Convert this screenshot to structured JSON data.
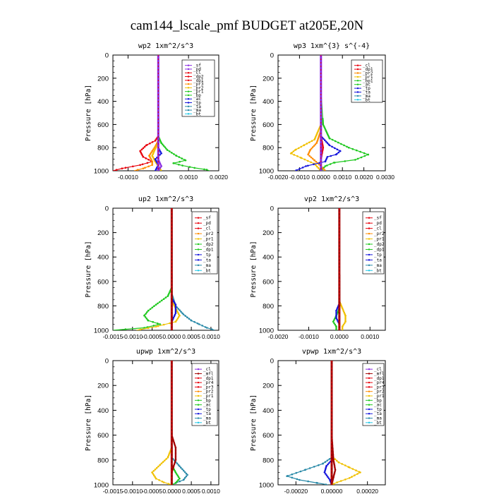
{
  "figure": {
    "title": "cam144_lscale_pmf  BUDGET at205E,20N",
    "colors": {
      "black": "#000000",
      "purple": "#8a2be2",
      "red": "#e8000b",
      "darkred": "#a00000",
      "orange": "#ff8c00",
      "gold": "#f0c000",
      "green": "#1ec81e",
      "blue": "#1414dc",
      "teal": "#2a8aa8",
      "cyan": "#20c8e8"
    }
  },
  "chart_data": [
    {
      "type": "line",
      "title": "wp2   1xm^2/s^3",
      "ylabel": "Pressure  [hPa]",
      "xlim": [
        -0.0015,
        0.002
      ],
      "ylim": [
        1000,
        0
      ],
      "xticks": [
        -0.001,
        0.0,
        0.001,
        0.002
      ],
      "xtick_labels": [
        "-0.0010",
        "0.0000",
        "0.0010",
        "0.0020"
      ],
      "yticks": [
        0,
        200,
        400,
        600,
        800,
        1000
      ],
      "legend": [
        {
          "name": "_sf",
          "color": "purple"
        },
        {
          "name": "_pd",
          "color": "purple"
        },
        {
          "name": "_cl",
          "color": "red"
        },
        {
          "name": "_dp2",
          "color": "red"
        },
        {
          "name": "_dp1",
          "color": "red"
        },
        {
          "name": "_pr3",
          "color": "orange"
        },
        {
          "name": "_pr2",
          "color": "gold"
        },
        {
          "name": "_pr1",
          "color": "green"
        },
        {
          "name": "_bp",
          "color": "green"
        },
        {
          "name": "_ac",
          "color": "blue"
        },
        {
          "name": "_tp",
          "color": "blue"
        },
        {
          "name": "_ta",
          "color": "teal"
        },
        {
          "name": "_ma",
          "color": "teal"
        },
        {
          "name": "_bt",
          "color": "cyan"
        }
      ],
      "series": [
        {
          "color": "green",
          "x": [
            0,
            0,
            0,
            0.0001,
            0.0003,
            0.0006,
            0.0009,
            0.0005,
            0.0008,
            0.0012,
            0.0016,
            0.0017
          ],
          "y": [
            0,
            600,
            700,
            760,
            820,
            870,
            910,
            935,
            955,
            975,
            990,
            1000
          ]
        },
        {
          "color": "red",
          "x": [
            0,
            0,
            -0.0001,
            -0.0004,
            -0.0006,
            -0.0005,
            -0.0002,
            -0.0006,
            -0.0012,
            -0.0015
          ],
          "y": [
            0,
            700,
            740,
            780,
            830,
            880,
            920,
            950,
            980,
            1000
          ]
        },
        {
          "color": "orange",
          "x": [
            0,
            0,
            -0.0001,
            -0.0002,
            -0.0003,
            -0.0002,
            -0.0002,
            -0.0005,
            -0.0008
          ],
          "y": [
            0,
            740,
            790,
            830,
            870,
            920,
            950,
            980,
            1000
          ]
        },
        {
          "color": "gold",
          "x": [
            0,
            0,
            -0.0001,
            -0.0002,
            -0.0001,
            0,
            0.0001
          ],
          "y": [
            0,
            760,
            810,
            870,
            920,
            960,
            1000
          ]
        },
        {
          "color": "blue",
          "x": [
            0,
            0,
            0.0001,
            -0.0001,
            0,
            -0.0001
          ],
          "y": [
            0,
            800,
            850,
            900,
            950,
            1000
          ]
        },
        {
          "color": "purple",
          "x": [
            0,
            0,
            0,
            0.0001,
            0
          ],
          "y": [
            0,
            700,
            900,
            960,
            1000
          ]
        }
      ]
    },
    {
      "type": "line",
      "title": "wp3   1xm^{3} s^{-4}",
      "ylabel": "Pressure  [hPa]",
      "xlim": [
        -0.002,
        0.003
      ],
      "ylim": [
        1000,
        0
      ],
      "xticks": [
        -0.002,
        -0.001,
        0.0,
        0.001,
        0.002,
        0.003
      ],
      "xtick_labels": [
        "-0.0020",
        "-0.0010",
        "0.0000",
        "0.0010",
        "0.0020",
        "0.0030"
      ],
      "yticks": [
        0,
        200,
        400,
        600,
        800,
        1000
      ],
      "legend": [
        {
          "name": "_cl",
          "color": "red"
        },
        {
          "name": "_dp1",
          "color": "red"
        },
        {
          "name": "_pr2",
          "color": "orange"
        },
        {
          "name": "_pr1",
          "color": "gold"
        },
        {
          "name": "_bp1",
          "color": "green"
        },
        {
          "name": "_ac",
          "color": "green"
        },
        {
          "name": "_tp",
          "color": "blue"
        },
        {
          "name": "_ta",
          "color": "blue"
        },
        {
          "name": "_ma",
          "color": "teal"
        },
        {
          "name": "_bt",
          "color": "cyan"
        }
      ],
      "series": [
        {
          "color": "green",
          "x": [
            0,
            0,
            0.0001,
            0.0004,
            0.0013,
            0.0022,
            0.0016,
            0.0006,
            0.0002,
            0
          ],
          "y": [
            0,
            300,
            600,
            720,
            800,
            860,
            905,
            930,
            960,
            1000
          ]
        },
        {
          "color": "gold",
          "x": [
            0,
            0,
            -0.0003,
            -0.0008,
            -0.0012,
            -0.0014,
            -0.0009,
            -0.0003,
            0
          ],
          "y": [
            0,
            600,
            730,
            780,
            820,
            850,
            890,
            940,
            1000
          ]
        },
        {
          "color": "orange",
          "x": [
            0,
            0,
            -0.0002,
            -0.0005,
            -0.0006,
            -0.0003,
            0,
            0.0002
          ],
          "y": [
            0,
            650,
            760,
            820,
            860,
            910,
            960,
            1000
          ]
        },
        {
          "color": "blue",
          "x": [
            0,
            0,
            0.0004,
            0.0009,
            0.0007,
            0.0003,
            0.0002,
            -0.0007,
            -0.0012
          ],
          "y": [
            0,
            700,
            780,
            830,
            860,
            880,
            920,
            960,
            1000
          ]
        },
        {
          "color": "red",
          "x": [
            0,
            0,
            0.0001,
            0,
            0
          ],
          "y": [
            0,
            700,
            800,
            900,
            1000
          ]
        }
      ]
    },
    {
      "type": "line",
      "title": "up2   1xm^2/s^3",
      "ylabel": "Pressure  [hPa]",
      "xlim": [
        -0.0015,
        0.0012
      ],
      "ylim": [
        1000,
        0
      ],
      "xticks": [
        -0.0015,
        -0.001,
        -0.0005,
        0.0,
        0.0005,
        0.001
      ],
      "xtick_labels": [
        "-0.0015",
        "-0.0010",
        "-0.0005",
        "0.0000",
        "0.0005",
        "0.0010"
      ],
      "yticks": [
        0,
        200,
        400,
        600,
        800,
        1000
      ],
      "legend": [
        {
          "name": "_sf",
          "color": "red"
        },
        {
          "name": "_pd",
          "color": "red"
        },
        {
          "name": "_cl",
          "color": "red"
        },
        {
          "name": "_pr2",
          "color": "orange"
        },
        {
          "name": "_pr1",
          "color": "gold"
        },
        {
          "name": "_dp2",
          "color": "green"
        },
        {
          "name": "_dp1",
          "color": "green"
        },
        {
          "name": "_tp",
          "color": "blue"
        },
        {
          "name": "_ta",
          "color": "blue"
        },
        {
          "name": "_ma",
          "color": "teal"
        },
        {
          "name": "_bt",
          "color": "cyan"
        }
      ],
      "series": [
        {
          "color": "green",
          "x": [
            0,
            0,
            -0.0001,
            -0.0004,
            -0.0006,
            -0.0007,
            -0.0006,
            -0.0003,
            -0.0007,
            -0.0015
          ],
          "y": [
            0,
            650,
            720,
            790,
            840,
            880,
            920,
            950,
            980,
            1000
          ]
        },
        {
          "color": "teal",
          "x": [
            0,
            0,
            0.0001,
            0.0003,
            0.0005,
            0.0007,
            0.0009,
            0.0011
          ],
          "y": [
            0,
            700,
            800,
            870,
            920,
            950,
            980,
            1000
          ]
        },
        {
          "color": "gold",
          "x": [
            0,
            0,
            0.0001,
            0.0002,
            0.0001,
            -0.0004,
            -0.0009
          ],
          "y": [
            0,
            760,
            820,
            880,
            930,
            970,
            1000
          ]
        },
        {
          "color": "blue",
          "x": [
            0,
            0,
            0.0001,
            0.0001,
            0,
            0
          ],
          "y": [
            0,
            740,
            790,
            860,
            930,
            1000
          ]
        },
        {
          "color": "red",
          "x": [
            0,
            0,
            0,
            0
          ],
          "y": [
            0,
            600,
            900,
            1000
          ]
        }
      ]
    },
    {
      "type": "line",
      "title": "vp2   1xm^2/s^3",
      "ylabel": "Pressure  [hPa]",
      "xlim": [
        -0.002,
        0.0015
      ],
      "ylim": [
        1000,
        0
      ],
      "xticks": [
        -0.002,
        -0.001,
        0.0,
        0.001
      ],
      "xtick_labels": [
        "-0.0020",
        "-0.0010",
        "0.0000",
        "0.0010"
      ],
      "yticks": [
        0,
        200,
        400,
        600,
        800,
        1000
      ],
      "legend": [
        {
          "name": "_sf",
          "color": "red"
        },
        {
          "name": "_pd",
          "color": "red"
        },
        {
          "name": "_cl",
          "color": "red"
        },
        {
          "name": "_pr2",
          "color": "orange"
        },
        {
          "name": "_pr1",
          "color": "gold"
        },
        {
          "name": "_dp2",
          "color": "green"
        },
        {
          "name": "_dp1",
          "color": "green"
        },
        {
          "name": "_tp",
          "color": "blue"
        },
        {
          "name": "_ta",
          "color": "blue"
        },
        {
          "name": "_ma",
          "color": "teal"
        },
        {
          "name": "_bt",
          "color": "cyan"
        }
      ],
      "series": [
        {
          "color": "green",
          "x": [
            0,
            0,
            0,
            -0.0001,
            -0.0002,
            -0.0001,
            -0.0001
          ],
          "y": [
            0,
            750,
            820,
            880,
            930,
            970,
            1000
          ]
        },
        {
          "color": "gold",
          "x": [
            0,
            0,
            0.0001,
            0.0002,
            0.0002,
            0.0001,
            0.0001
          ],
          "y": [
            0,
            760,
            820,
            880,
            930,
            970,
            1000
          ]
        },
        {
          "color": "blue",
          "x": [
            0,
            0,
            -0.0001,
            -0.0001,
            0,
            0
          ],
          "y": [
            0,
            780,
            840,
            900,
            950,
            1000
          ]
        },
        {
          "color": "red",
          "x": [
            0,
            0,
            0,
            0
          ],
          "y": [
            0,
            600,
            900,
            1000
          ]
        }
      ]
    },
    {
      "type": "line",
      "title": "upwp   1xm^2/s^3",
      "ylabel": "Pressure  [hPa]",
      "xlim": [
        -0.0015,
        0.0012
      ],
      "ylim": [
        1000,
        0
      ],
      "xticks": [
        -0.0015,
        -0.001,
        -0.0005,
        0.0,
        0.0005,
        0.001
      ],
      "xtick_labels": [
        "-0.0015",
        "-0.0010",
        "-0.0005",
        "0.0000",
        "0.0005",
        "0.0010"
      ],
      "yticks": [
        0,
        200,
        400,
        600,
        800,
        1000
      ],
      "legend": [
        {
          "name": "_cl",
          "color": "purple"
        },
        {
          "name": "_mfl",
          "color": "darkred"
        },
        {
          "name": "_dp1",
          "color": "red"
        },
        {
          "name": "_pr4",
          "color": "red"
        },
        {
          "name": "_pr3",
          "color": "red"
        },
        {
          "name": "_pr2",
          "color": "orange"
        },
        {
          "name": "_pr1",
          "color": "gold"
        },
        {
          "name": "_bp",
          "color": "green"
        },
        {
          "name": "_ac",
          "color": "green"
        },
        {
          "name": "_tp",
          "color": "blue"
        },
        {
          "name": "_ta",
          "color": "blue"
        },
        {
          "name": "_ma",
          "color": "teal"
        },
        {
          "name": "_bt",
          "color": "cyan"
        }
      ],
      "series": [
        {
          "color": "gold",
          "x": [
            0,
            0,
            -0.0001,
            -0.0003,
            -0.0005,
            -0.0004,
            -0.0002,
            0
          ],
          "y": [
            0,
            700,
            780,
            840,
            900,
            950,
            980,
            1000
          ]
        },
        {
          "color": "teal",
          "x": [
            0,
            0,
            0.0002,
            0.0004,
            0.0003,
            0.0001,
            0
          ],
          "y": [
            0,
            780,
            850,
            920,
            960,
            985,
            1000
          ]
        },
        {
          "color": "green",
          "x": [
            0,
            0,
            0.0001,
            0.0002,
            0.0001,
            0
          ],
          "y": [
            0,
            840,
            900,
            950,
            985,
            1000
          ]
        },
        {
          "color": "darkred",
          "x": [
            0,
            0,
            0.0001,
            0.0001,
            0,
            0,
            0
          ],
          "y": [
            0,
            600,
            700,
            800,
            900,
            950,
            1000
          ]
        }
      ]
    },
    {
      "type": "line",
      "title": "vpwp   1xm^2/s^3",
      "ylabel": "Pressure  [hPa]",
      "xlim": [
        -0.0003,
        0.0003
      ],
      "ylim": [
        1000,
        0
      ],
      "xticks": [
        -0.0002,
        0.0,
        0.0002
      ],
      "xtick_labels": [
        "-0.00020",
        "0.00000",
        "0.00020"
      ],
      "yticks": [
        0,
        200,
        400,
        600,
        800,
        1000
      ],
      "legend": [
        {
          "name": "_cl",
          "color": "purple"
        },
        {
          "name": "_mfl",
          "color": "darkred"
        },
        {
          "name": "_dp1",
          "color": "red"
        },
        {
          "name": "_pr4",
          "color": "red"
        },
        {
          "name": "_pr3",
          "color": "red"
        },
        {
          "name": "_pr2",
          "color": "orange"
        },
        {
          "name": "_pr1",
          "color": "gold"
        },
        {
          "name": "_bp",
          "color": "green"
        },
        {
          "name": "_ac",
          "color": "green"
        },
        {
          "name": "_tp",
          "color": "blue"
        },
        {
          "name": "_ta",
          "color": "blue"
        },
        {
          "name": "_ma",
          "color": "teal"
        },
        {
          "name": "_bt",
          "color": "cyan"
        }
      ],
      "series": [
        {
          "color": "teal",
          "x": [
            0,
            0,
            -5e-05,
            -0.00015,
            -0.00025,
            -0.00018,
            -8e-05,
            -2e-05
          ],
          "y": [
            0,
            780,
            830,
            880,
            930,
            960,
            985,
            1000
          ]
        },
        {
          "color": "gold",
          "x": [
            0,
            0,
            4e-05,
            0.0001,
            0.00016,
            0.0001,
            3e-05,
            0
          ],
          "y": [
            0,
            770,
            820,
            860,
            900,
            945,
            980,
            1000
          ]
        },
        {
          "color": "blue",
          "x": [
            0,
            0,
            -3e-05,
            -4e-05,
            -1e-05,
            0
          ],
          "y": [
            0,
            800,
            850,
            900,
            960,
            1000
          ]
        },
        {
          "color": "darkred",
          "x": [
            0,
            0,
            1e-05,
            2e-05,
            1e-05,
            0
          ],
          "y": [
            0,
            600,
            800,
            880,
            940,
            1000
          ]
        }
      ]
    }
  ]
}
